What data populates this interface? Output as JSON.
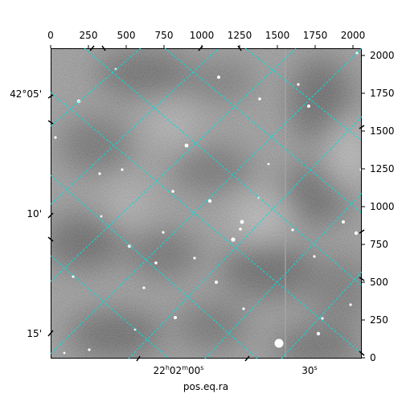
{
  "figure": {
    "xlabel": "pos.eq.ra",
    "grid_color": "#00e0e0",
    "image_style": "grayscale astronomical field with dark blotchy background variations and white star points"
  },
  "pixel_axes": {
    "top_ticks": [
      "0",
      "250",
      "500",
      "750",
      "1000",
      "1250",
      "1500",
      "1750",
      "2000"
    ],
    "right_ticks": [
      "0",
      "250",
      "500",
      "750",
      "1000",
      "1250",
      "1500",
      "1750",
      "2000"
    ],
    "range": [
      0,
      2050
    ]
  },
  "world_axes": {
    "ra_ticks": [
      {
        "hms": "22",
        "h": "h",
        "m": "02",
        "mm": "m",
        "s": "00",
        "ss": "s"
      },
      {
        "label": "30",
        "sup": "s"
      }
    ],
    "dec_ticks": [
      "42°05'",
      "10'",
      "15'"
    ]
  }
}
